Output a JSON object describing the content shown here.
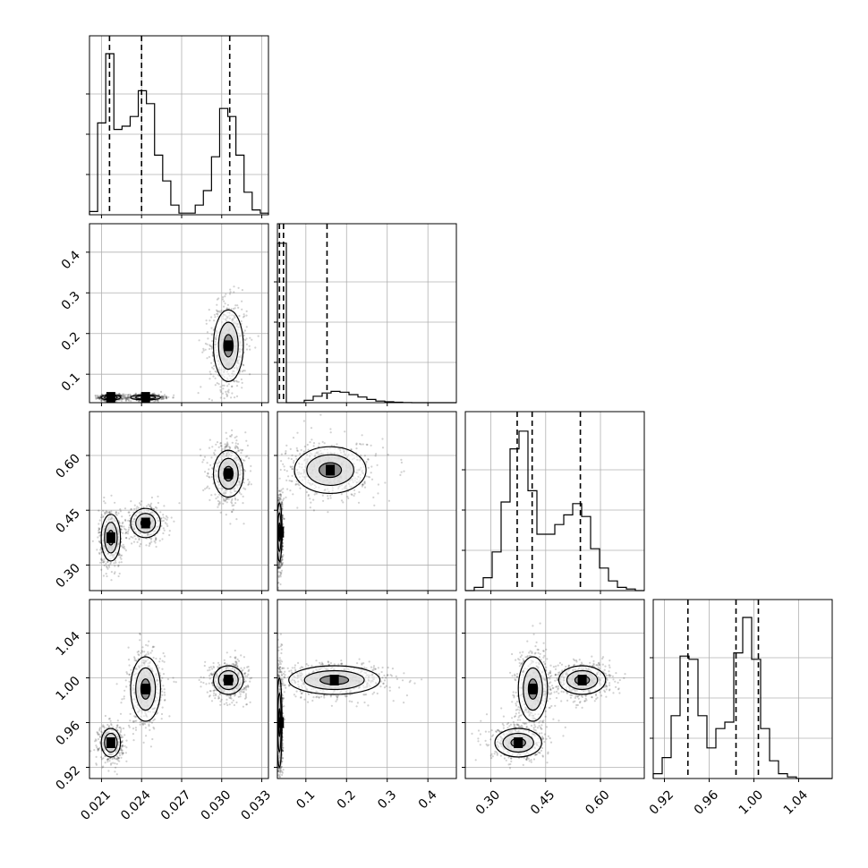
{
  "chart_data": {
    "type": "corner",
    "n_params": 4,
    "grid": true,
    "colors": {
      "line": "#000000",
      "grid": "#b0b0b0",
      "density": "#000000",
      "contour_fill": "#ffffff"
    },
    "params": [
      {
        "range": [
          0.0201,
          0.0335
        ],
        "ticks": [
          0.021,
          0.024,
          0.027,
          0.03,
          0.033
        ],
        "tick_labels": [
          "0.021",
          "0.024",
          "0.027",
          "0.030",
          "0.033"
        ],
        "quantiles": [
          0.0216,
          0.024,
          0.0306
        ]
      },
      {
        "range": [
          0.03,
          0.47
        ],
        "ticks": [
          0.1,
          0.2,
          0.3,
          0.4
        ],
        "tick_labels": [
          "0.1",
          "0.2",
          "0.3",
          "0.4"
        ],
        "quantiles": [
          0.035,
          0.045,
          0.152
        ]
      },
      {
        "range": [
          0.23,
          0.72
        ],
        "ticks": [
          0.3,
          0.45,
          0.6
        ],
        "tick_labels": [
          "0.30",
          "0.45",
          "0.60"
        ],
        "quantiles": [
          0.372,
          0.413,
          0.545
        ]
      },
      {
        "range": [
          0.91,
          1.07
        ],
        "ticks": [
          0.92,
          0.96,
          1.0,
          1.04
        ],
        "tick_labels": [
          "0.92",
          "0.96",
          "1.00",
          "1.04"
        ],
        "quantiles": [
          0.941,
          0.984,
          1.004
        ]
      }
    ],
    "histograms": [
      {
        "param": 0,
        "heights": [
          0.02,
          0.57,
          1.0,
          0.53,
          0.55,
          0.61,
          0.77,
          0.69,
          0.37,
          0.21,
          0.06,
          0.01,
          0.01,
          0.06,
          0.15,
          0.36,
          0.66,
          0.61,
          0.37,
          0.14,
          0.03,
          0.01
        ]
      },
      {
        "param": 1,
        "heights": [
          0.99,
          0.0,
          0.0,
          0.015,
          0.04,
          0.06,
          0.07,
          0.065,
          0.05,
          0.035,
          0.02,
          0.01,
          0.006,
          0.003,
          0.001,
          0.0,
          0.0,
          0.0,
          0.0,
          0.0
        ]
      },
      {
        "param": 2,
        "heights": [
          0.0,
          0.02,
          0.08,
          0.24,
          0.55,
          0.88,
          0.99,
          0.62,
          0.35,
          0.35,
          0.41,
          0.47,
          0.54,
          0.46,
          0.26,
          0.14,
          0.06,
          0.02,
          0.01,
          0.0
        ]
      },
      {
        "param": 3,
        "heights": [
          0.03,
          0.13,
          0.39,
          0.76,
          0.74,
          0.39,
          0.19,
          0.31,
          0.35,
          0.78,
          1.0,
          0.74,
          0.31,
          0.11,
          0.03,
          0.01,
          0.0,
          0.0,
          0.0,
          0.0
        ]
      }
    ],
    "clusters_2d": [
      {
        "px": 0,
        "py": 1,
        "clusters": [
          {
            "center": [
              0.0217,
              0.043
            ],
            "spread": [
              0.00045,
              0.004
            ],
            "weight": 0.3
          },
          {
            "center": [
              0.0243,
              0.043
            ],
            "spread": [
              0.0007,
              0.004
            ],
            "weight": 0.3
          },
          {
            "center": [
              0.0305,
              0.17
            ],
            "spread": [
              0.0007,
              0.055
            ],
            "weight": 0.4
          }
        ]
      },
      {
        "px": 0,
        "py": 2,
        "clusters": [
          {
            "center": [
              0.0217,
              0.375
            ],
            "spread": [
              0.00045,
              0.04
            ],
            "weight": 0.3
          },
          {
            "center": [
              0.0243,
              0.415
            ],
            "spread": [
              0.0007,
              0.025
            ],
            "weight": 0.3
          },
          {
            "center": [
              0.0305,
              0.55
            ],
            "spread": [
              0.0007,
              0.04
            ],
            "weight": 0.4
          }
        ]
      },
      {
        "px": 0,
        "py": 3,
        "clusters": [
          {
            "center": [
              0.0217,
              0.942
            ],
            "spread": [
              0.00045,
              0.008
            ],
            "weight": 0.3
          },
          {
            "center": [
              0.0243,
              0.99
            ],
            "spread": [
              0.0007,
              0.018
            ],
            "weight": 0.3
          },
          {
            "center": [
              0.0305,
              0.998
            ],
            "spread": [
              0.0007,
              0.008
            ],
            "weight": 0.4
          }
        ]
      },
      {
        "px": 1,
        "py": 2,
        "clusters": [
          {
            "center": [
              0.035,
              0.39
            ],
            "spread": [
              0.004,
              0.05
            ],
            "weight": 0.6
          },
          {
            "center": [
              0.16,
              0.56
            ],
            "spread": [
              0.055,
              0.04
            ],
            "weight": 0.4
          }
        ]
      },
      {
        "px": 1,
        "py": 3,
        "clusters": [
          {
            "center": [
              0.035,
              0.96
            ],
            "spread": [
              0.004,
              0.025
            ],
            "weight": 0.6
          },
          {
            "center": [
              0.17,
              0.998
            ],
            "spread": [
              0.07,
              0.008
            ],
            "weight": 0.4
          }
        ]
      },
      {
        "px": 2,
        "py": 3,
        "clusters": [
          {
            "center": [
              0.375,
              0.942
            ],
            "spread": [
              0.04,
              0.008
            ],
            "weight": 0.3
          },
          {
            "center": [
              0.415,
              0.99
            ],
            "spread": [
              0.025,
              0.018
            ],
            "weight": 0.3
          },
          {
            "center": [
              0.55,
              0.998
            ],
            "spread": [
              0.04,
              0.008
            ],
            "weight": 0.4
          }
        ]
      }
    ]
  }
}
